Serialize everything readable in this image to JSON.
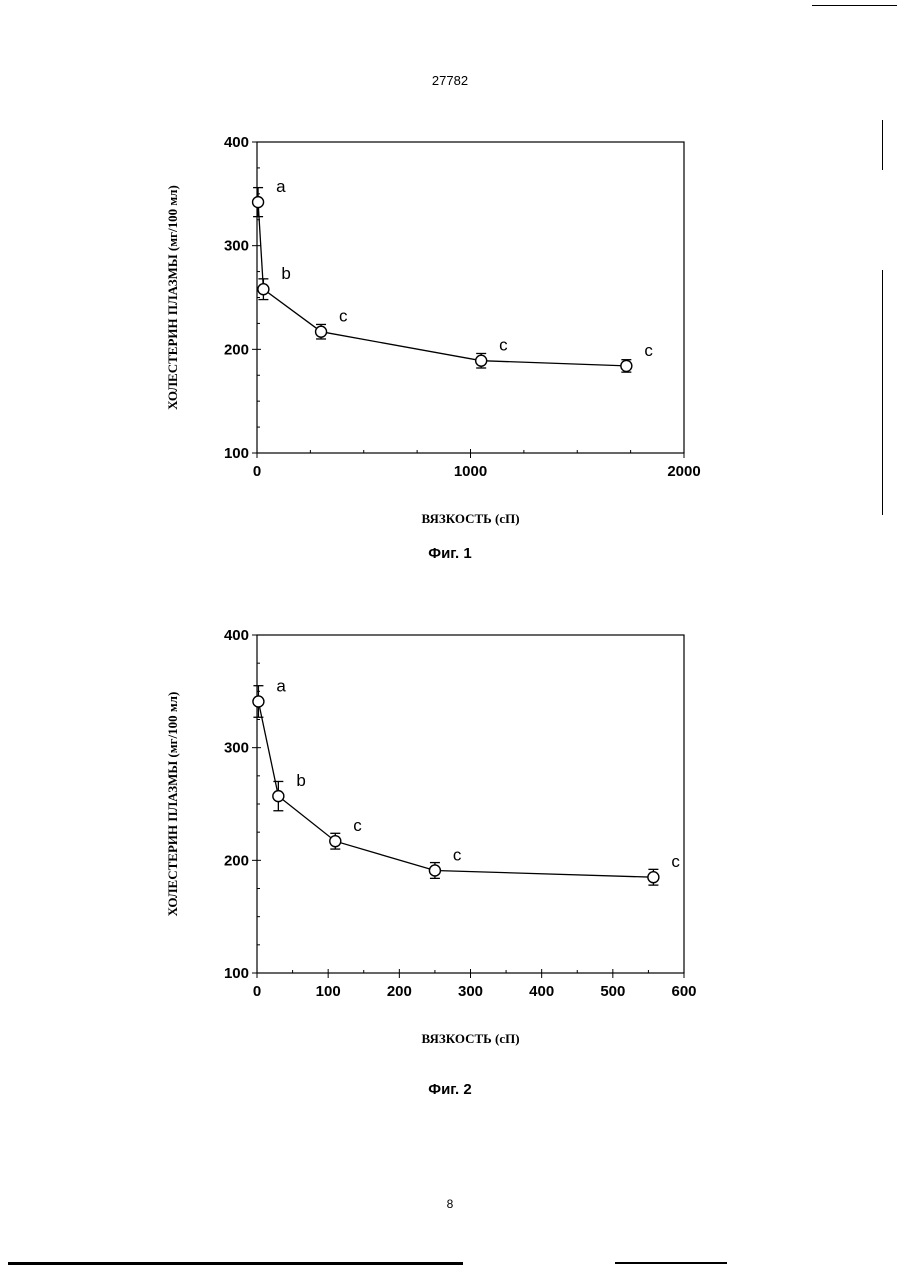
{
  "page": {
    "doc_number": "27782",
    "page_number": "8"
  },
  "chart_data": [
    {
      "type": "line",
      "caption": "Фиг. 1",
      "xlabel": "ВЯЗКОСТЬ (сП)",
      "ylabel": "ХОЛЕСТЕРИН ПЛАЗМЫ (мг/100 мл)",
      "xlim": [
        0,
        2000
      ],
      "ylim": [
        100,
        400
      ],
      "x_ticks": [
        0,
        1000,
        2000
      ],
      "y_ticks": [
        100,
        200,
        300,
        400
      ],
      "grid": false,
      "series": [
        {
          "points": [
            {
              "x": 5,
              "y": 342,
              "err": 14,
              "label": "a"
            },
            {
              "x": 30,
              "y": 258,
              "err": 10,
              "label": "b"
            },
            {
              "x": 300,
              "y": 217,
              "err": 7,
              "label": "c"
            },
            {
              "x": 1050,
              "y": 189,
              "err": 7,
              "label": "c"
            },
            {
              "x": 1730,
              "y": 184,
              "err": 6,
              "label": "c"
            }
          ]
        }
      ]
    },
    {
      "type": "line",
      "caption": "Фиг. 2",
      "xlabel": "ВЯЗКОСТЬ (сП)",
      "ylabel": "ХОЛЕСТЕРИН ПЛАЗМЫ (мг/100 мл)",
      "xlim": [
        0,
        600
      ],
      "ylim": [
        100,
        400
      ],
      "x_ticks": [
        0,
        100,
        200,
        300,
        400,
        500,
        600
      ],
      "y_ticks": [
        100,
        200,
        300,
        400
      ],
      "grid": false,
      "series": [
        {
          "points": [
            {
              "x": 2,
              "y": 341,
              "err": 14,
              "label": "a"
            },
            {
              "x": 30,
              "y": 257,
              "err": 13,
              "label": "b"
            },
            {
              "x": 110,
              "y": 217,
              "err": 7,
              "label": "c"
            },
            {
              "x": 250,
              "y": 191,
              "err": 7,
              "label": "c"
            },
            {
              "x": 557,
              "y": 185,
              "err": 7,
              "label": "c"
            }
          ]
        }
      ]
    }
  ]
}
